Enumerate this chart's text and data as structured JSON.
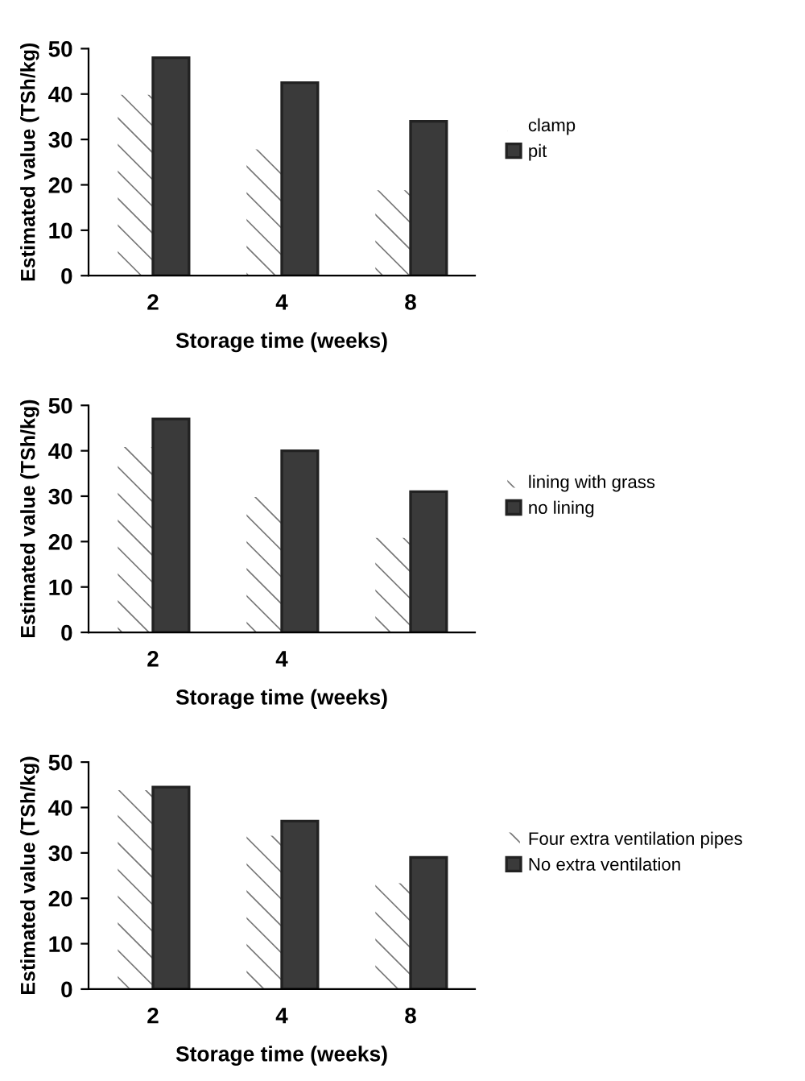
{
  "chart_data": [
    {
      "type": "bar",
      "xlabel": "Storage time (weeks)",
      "ylabel": "Estimated value (TSh/kg)",
      "categories": [
        "2",
        "4",
        "8"
      ],
      "ylim": [
        0,
        50
      ],
      "yticks": [
        0,
        10,
        20,
        30,
        40,
        50
      ],
      "legend": "right",
      "grid": false,
      "series": [
        {
          "name": "clamp",
          "color": "#ffffff",
          "values": [
            40,
            28,
            19
          ]
        },
        {
          "name": "pit",
          "color": "#3a3a3a",
          "values": [
            48,
            42.5,
            34
          ]
        }
      ]
    },
    {
      "type": "bar",
      "xlabel": "Storage time (weeks)",
      "ylabel": "Estimated value (TSh/kg)",
      "categories": [
        "2",
        "4",
        null
      ],
      "ylim": [
        0,
        50
      ],
      "yticks": [
        0,
        10,
        20,
        30,
        40,
        50
      ],
      "legend": "right",
      "grid": false,
      "series": [
        {
          "name": "lining with grass",
          "color": "#ffffff",
          "values": [
            41,
            30,
            21
          ]
        },
        {
          "name": "no lining",
          "color": "#3a3a3a",
          "values": [
            47,
            40,
            31
          ]
        }
      ]
    },
    {
      "type": "bar",
      "xlabel": "Storage time (weeks)",
      "ylabel": "Estimated value (TSh/kg)",
      "categories": [
        "2",
        "4",
        "8"
      ],
      "ylim": [
        0,
        50
      ],
      "yticks": [
        0,
        10,
        20,
        30,
        40,
        50
      ],
      "legend": "right",
      "grid": false,
      "series": [
        {
          "name": "Four extra ventilation pipes",
          "color": "#ffffff",
          "values": [
            44,
            34,
            23.5
          ]
        },
        {
          "name": "No extra ventilation",
          "color": "#3a3a3a",
          "values": [
            44.5,
            37,
            29
          ]
        }
      ]
    }
  ]
}
